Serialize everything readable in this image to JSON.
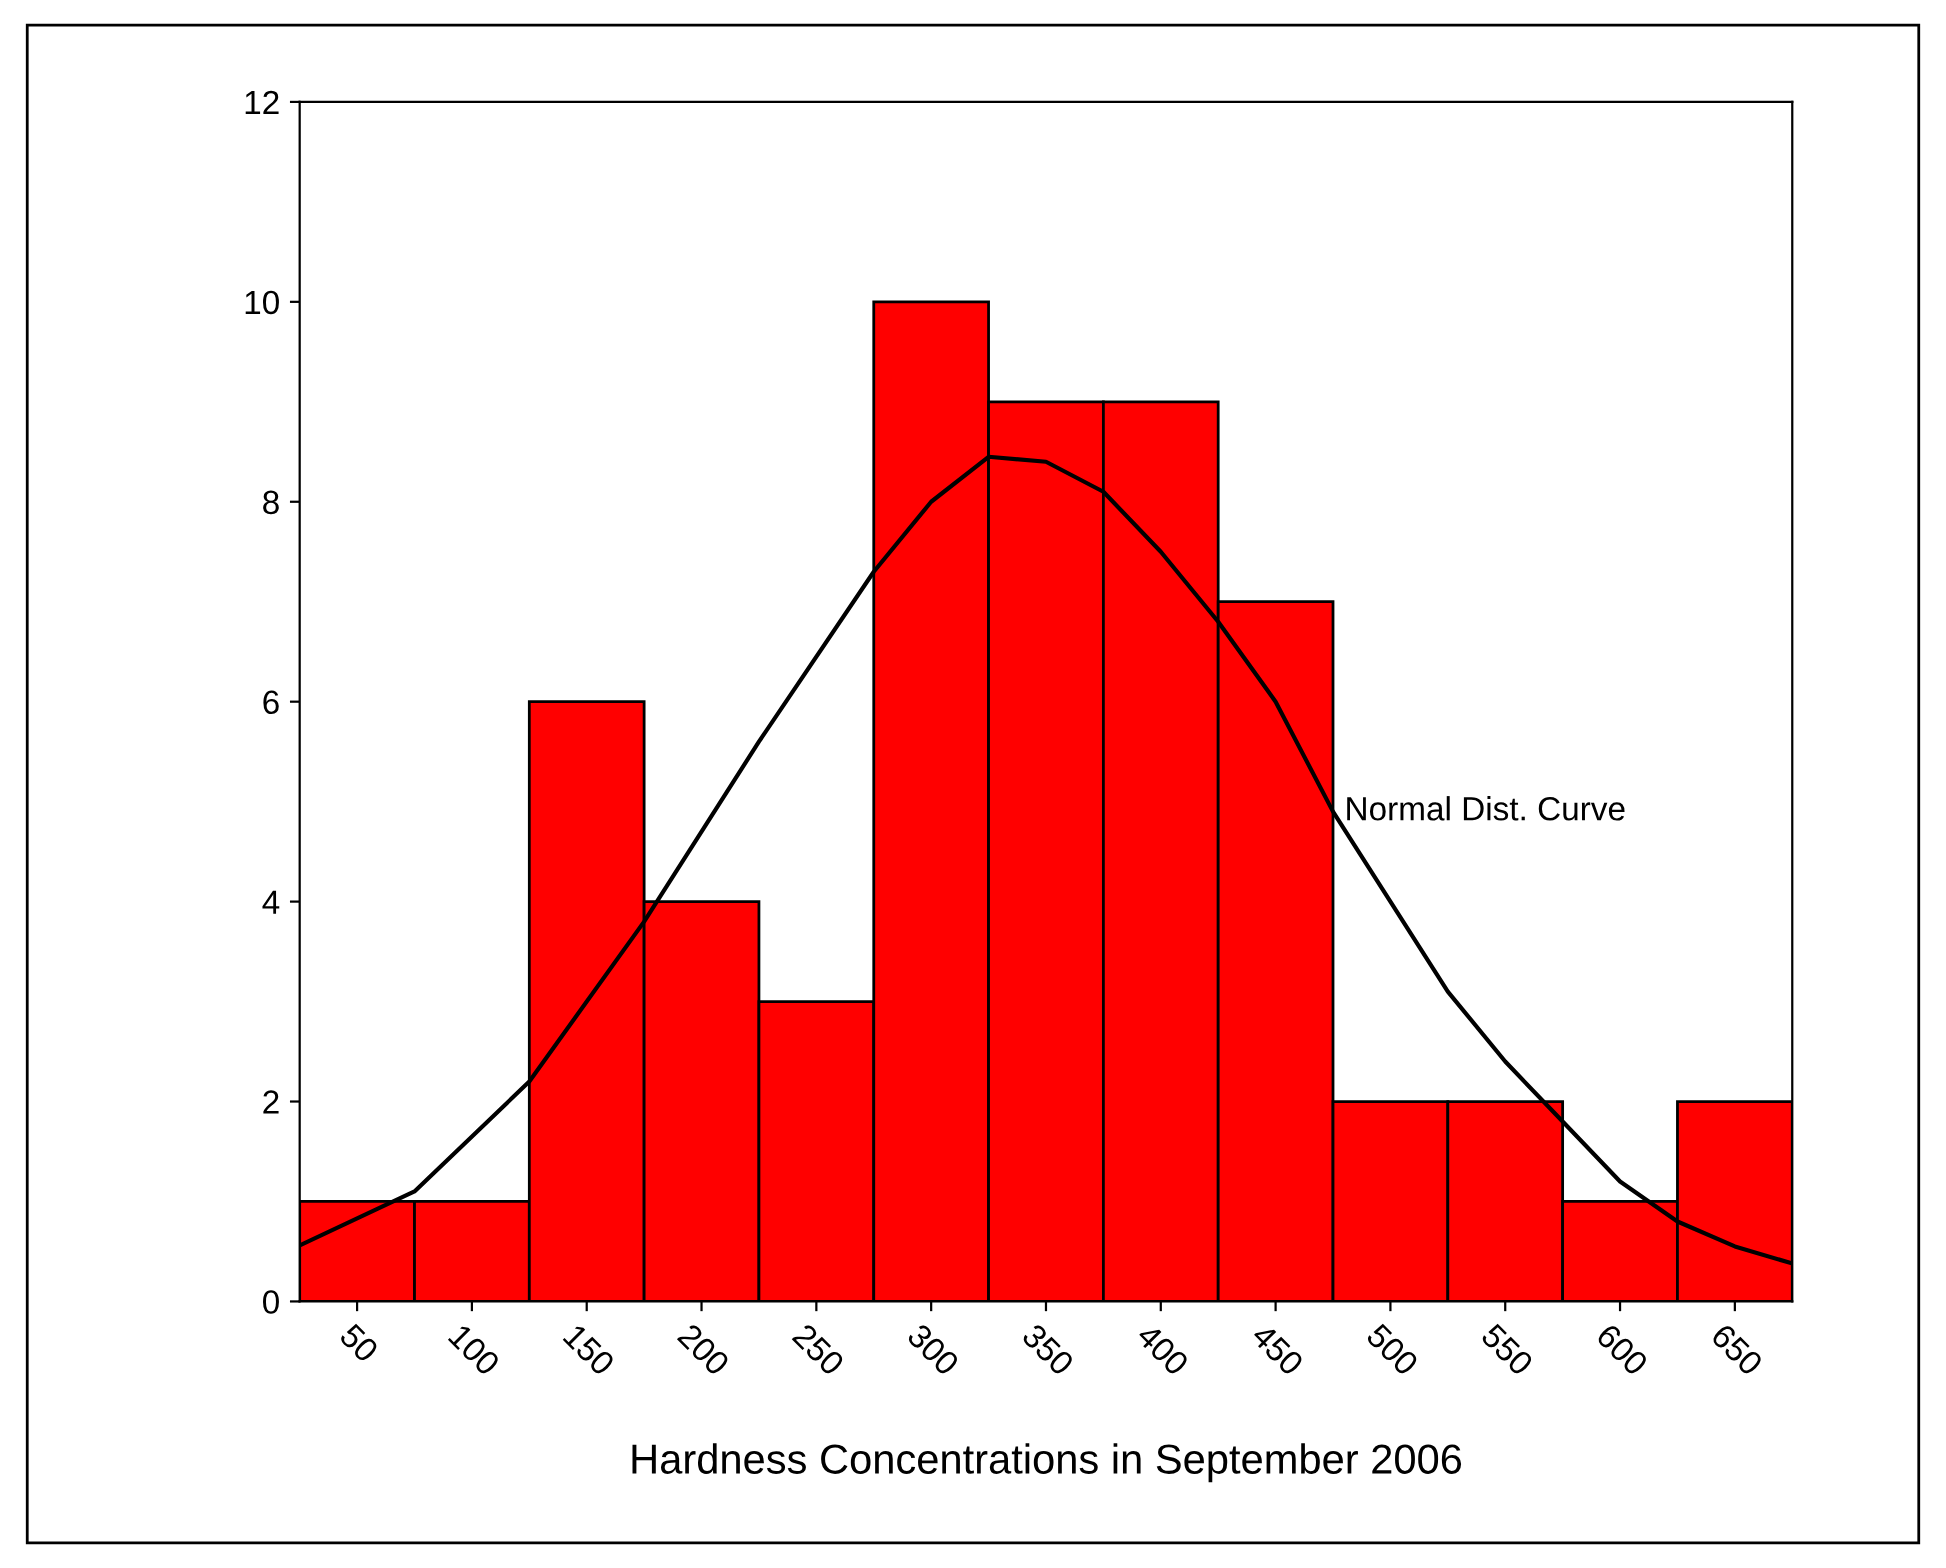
{
  "chart_data": {
    "type": "histogram",
    "xlabel": "Hardness Concentrations in September 2006",
    "bins": [
      25,
      75,
      125,
      175,
      225,
      275,
      325,
      375,
      425,
      475,
      525,
      575,
      625,
      675
    ],
    "values": [
      1,
      1,
      6,
      4,
      3,
      10,
      9,
      9,
      7,
      2,
      2,
      1,
      2
    ],
    "color": "#ff0000",
    "series": [
      {
        "type": "line",
        "color": "#000000",
        "x": [
          25,
          75,
          125,
          175,
          225,
          275,
          300,
          325,
          350,
          375,
          400,
          425,
          450,
          475,
          500,
          525,
          550,
          575,
          600,
          625,
          650,
          675
        ],
        "values": [
          0.56,
          1.1,
          2.2,
          3.8,
          5.6,
          7.3,
          8.0,
          8.45,
          8.4,
          8.1,
          7.5,
          6.8,
          6.0,
          4.9,
          4.0,
          3.1,
          2.4,
          1.8,
          1.2,
          0.8,
          0.55,
          0.38
        ]
      }
    ],
    "annotations": [
      {
        "text": "Normal Dist. Curve",
        "x": 480,
        "y": 4.9
      }
    ],
    "xlim": [
      25,
      675
    ],
    "xticks": [
      50,
      100,
      150,
      200,
      250,
      300,
      350,
      400,
      450,
      500,
      550,
      600,
      650
    ],
    "ylim": [
      0,
      12
    ],
    "yticks": [
      0,
      2,
      4,
      6,
      8,
      10,
      12
    ],
    "grid": false,
    "legend": false
  }
}
